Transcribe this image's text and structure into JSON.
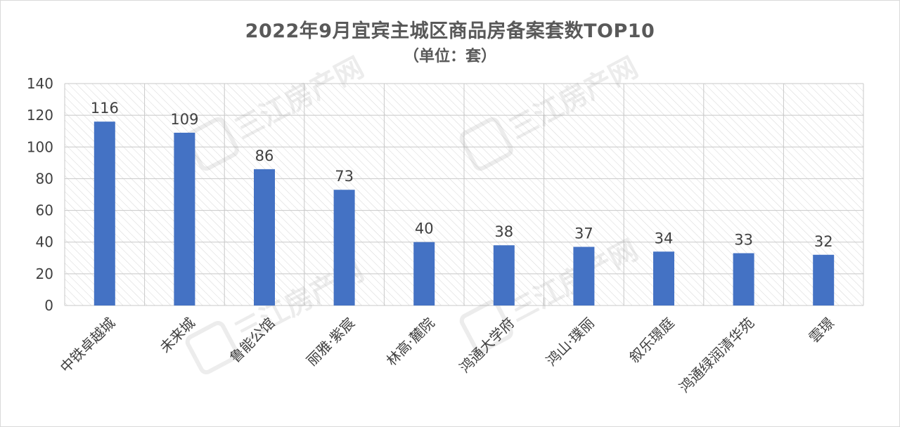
{
  "title": "2022年9月宜宾主城区商品房备案套数TOP10",
  "subtitle": "（单位：套）",
  "chart_data": {
    "type": "bar",
    "title": "2022年9月宜宾主城区商品房备案套数TOP10",
    "subtitle": "（单位：套）",
    "categories": [
      "中铁卓越城",
      "未来城",
      "鲁能公馆",
      "丽雅·紫宸",
      "林高·麓院",
      "鸿通大学府",
      "鸿山·璞丽",
      "叙乐璟庭",
      "鸿通绿润清华苑",
      "雲璟"
    ],
    "values": [
      116,
      109,
      86,
      73,
      40,
      38,
      37,
      34,
      33,
      32
    ],
    "ylim": [
      0,
      140
    ],
    "yticks": [
      0,
      20,
      40,
      60,
      80,
      100,
      120,
      140
    ],
    "xlabel": "",
    "ylabel": "",
    "grid": true,
    "bar_color": "#4472c4"
  },
  "watermark": "三江房产网"
}
